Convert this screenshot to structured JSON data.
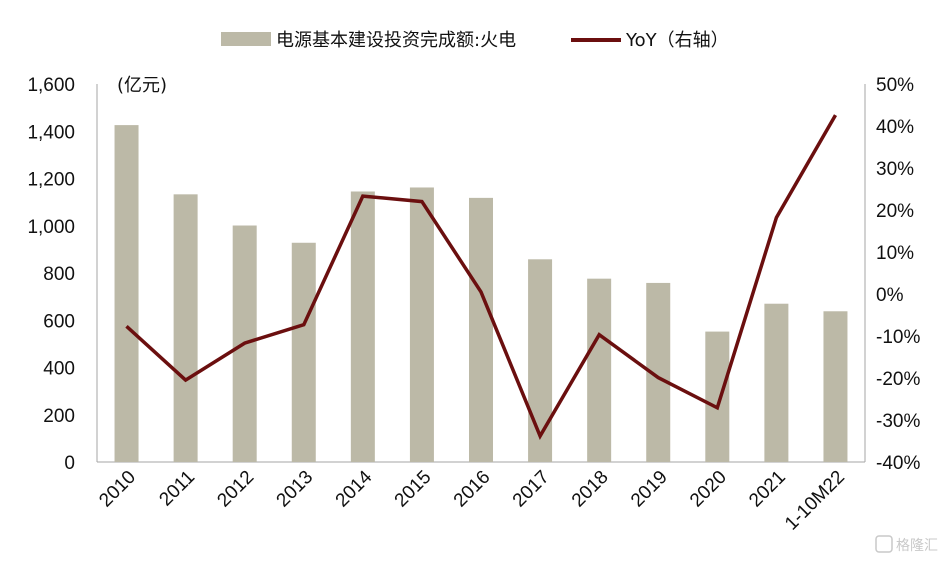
{
  "chart_data": {
    "type": "bar",
    "categories": [
      "2010",
      "2011",
      "2012",
      "2013",
      "2014",
      "2015",
      "2016",
      "2017",
      "2018",
      "2019",
      "2020",
      "2021",
      "1-10M22"
    ],
    "series": [
      {
        "name": "电源基本建设投资完成额:火电",
        "type": "bar",
        "axis": "left",
        "color": "#bcb9a7",
        "values": [
          1426,
          1133,
          1001,
          928,
          1145,
          1162,
          1118,
          858,
          776,
          758,
          552,
          670,
          638
        ]
      },
      {
        "name": "YoY（右轴）",
        "type": "line",
        "axis": "right",
        "color": "#6b0f0f",
        "values": [
          -7.7,
          -20.5,
          -11.7,
          -7.3,
          23.3,
          22.0,
          0.5,
          -33.8,
          -9.7,
          -19.9,
          -27.1,
          18.2,
          42.6
        ]
      }
    ],
    "y_left": {
      "ylim": [
        0,
        1600
      ],
      "ticks": [
        "0",
        "200",
        "400",
        "600",
        "800",
        "1,000",
        "1,200",
        "1,400",
        "1,600"
      ],
      "unit": "(亿元)"
    },
    "y_right": {
      "ylim": [
        -40,
        50
      ],
      "ticks": [
        "-40%",
        "-30%",
        "-20%",
        "-10%",
        "0%",
        "10%",
        "20%",
        "30%",
        "40%",
        "50%"
      ]
    },
    "grid": false,
    "legend": "top"
  },
  "watermark": "格隆汇"
}
